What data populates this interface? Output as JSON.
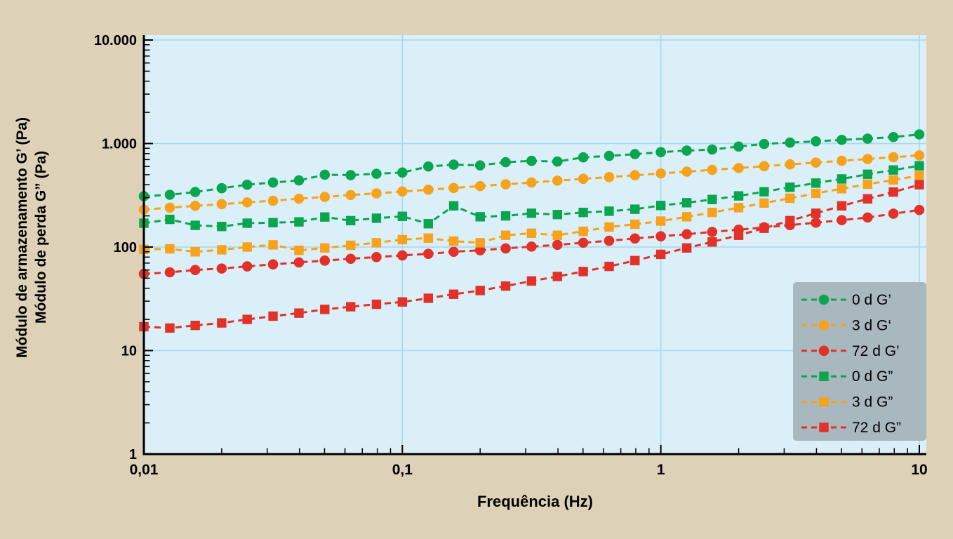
{
  "figure": {
    "x_label": "Frequência (Hz)",
    "y_label_line1": "Módulo de armazenamento G’ (Pa)",
    "y_label_line2": "Módulo de perda G” (Pa)"
  },
  "colors": {
    "page_bg": "#DDD2B8",
    "plot_bg": "#DBEFF8",
    "grid": "#A3DAEE",
    "axis": "#000000",
    "legend_bg": "#A9B7BE",
    "tick_label": "#000000"
  },
  "chart_data": {
    "type": "line",
    "x_scale": "log",
    "y_scale": "log",
    "xlim": [
      0.01,
      10
    ],
    "ylim": [
      1,
      10000
    ],
    "title": "",
    "xlabel": "Frequência (Hz)",
    "ylabel": [
      "Módulo de armazenamento G’ (Pa)",
      "Módulo de perda G” (Pa)"
    ],
    "grid": true,
    "legend_position": "lower right",
    "x_ticks": {
      "values": [
        0.01,
        0.1,
        1,
        10
      ],
      "labels": [
        "0,01",
        "0,1",
        "1",
        "10"
      ]
    },
    "y_ticks": {
      "values": [
        1,
        10,
        100,
        1000,
        10000
      ],
      "labels": [
        "1",
        "10",
        "100",
        "1.000",
        "10.000"
      ]
    },
    "x": [
      0.01,
      0.0126,
      0.0158,
      0.02,
      0.0251,
      0.0316,
      0.0398,
      0.0501,
      0.0631,
      0.0794,
      0.1,
      0.126,
      0.158,
      0.2,
      0.251,
      0.316,
      0.398,
      0.501,
      0.631,
      0.794,
      1,
      1.26,
      1.58,
      2,
      2.51,
      3.16,
      3.98,
      5.01,
      6.31,
      7.94,
      10
    ],
    "series": [
      {
        "name": "0 d G’",
        "marker": "circle",
        "color": "#0AA64F",
        "values": [
          310,
          320,
          340,
          370,
          400,
          420,
          440,
          500,
          495,
          510,
          525,
          600,
          625,
          615,
          660,
          680,
          670,
          735,
          760,
          790,
          825,
          855,
          875,
          935,
          990,
          1020,
          1050,
          1085,
          1115,
          1155,
          1225
        ]
      },
      {
        "name": "3 d G‘",
        "marker": "circle",
        "color": "#F6A21C",
        "values": [
          230,
          240,
          250,
          260,
          270,
          280,
          293,
          305,
          318,
          330,
          344,
          358,
          372,
          388,
          404,
          420,
          438,
          456,
          474,
          494,
          514,
          535,
          557,
          580,
          604,
          629,
          654,
          681,
          709,
          738,
          768
        ]
      },
      {
        "name": "72 d G’",
        "marker": "circle",
        "color": "#E23128",
        "values": [
          55,
          57,
          60,
          62,
          65,
          68,
          71,
          74,
          77,
          80,
          83,
          86,
          90,
          93,
          97,
          101,
          105,
          110,
          115,
          121,
          127,
          133,
          140,
          147,
          155,
          163,
          172,
          182,
          193,
          210,
          228
        ]
      },
      {
        "name": "0 d G”",
        "marker": "square",
        "color": "#0AA64F",
        "values": [
          170,
          185,
          162,
          158,
          170,
          172,
          175,
          195,
          180,
          190,
          198,
          168,
          250,
          196,
          200,
          212,
          206,
          216,
          222,
          232,
          252,
          268,
          288,
          312,
          342,
          378,
          415,
          455,
          505,
          555,
          610
        ]
      },
      {
        "name": "3 d G”",
        "marker": "square",
        "color": "#F6A21C",
        "values": [
          95,
          96,
          90,
          94,
          100,
          105,
          93,
          98,
          104,
          110,
          118,
          122,
          114,
          110,
          130,
          136,
          130,
          142,
          156,
          166,
          178,
          196,
          216,
          240,
          266,
          296,
          330,
          366,
          405,
          445,
          490
        ]
      },
      {
        "name": "72 d G”",
        "marker": "square",
        "color": "#E23128",
        "values": [
          17,
          16.5,
          17.5,
          18.5,
          20,
          21.5,
          23,
          25,
          26.5,
          28,
          29.5,
          32,
          35,
          38,
          42,
          47,
          52,
          58,
          65,
          74,
          85,
          98,
          112,
          130,
          152,
          180,
          212,
          250,
          292,
          340,
          400
        ]
      }
    ]
  }
}
